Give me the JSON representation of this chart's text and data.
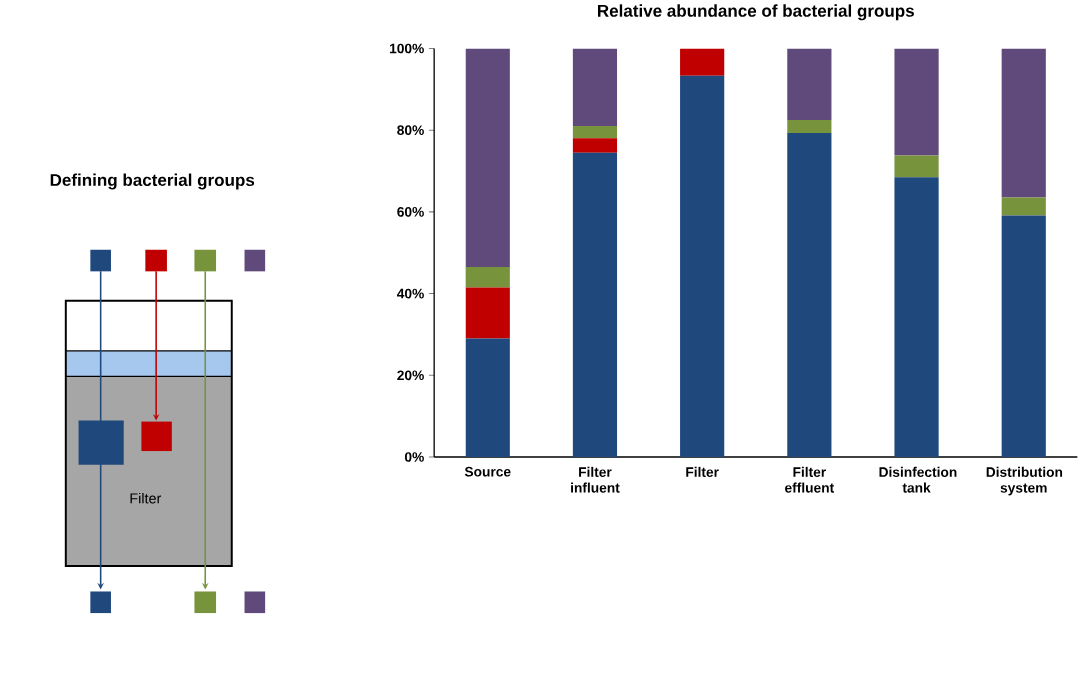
{
  "chart_data": [
    {
      "type": "other",
      "title": "Defining bacterial groups",
      "annotations": [
        "Filter"
      ]
    },
    {
      "type": "bar",
      "stacked": true,
      "title": "Relative abundance of bacterial groups",
      "categories": [
        "Source",
        "Filter influent",
        "Filter",
        "Filter effluent",
        "Disinfection tank",
        "Distribution system"
      ],
      "series": [
        {
          "color": "#1f497d",
          "values": [
            29,
            74.5,
            93.3,
            79.3,
            68.5,
            59.1
          ]
        },
        {
          "color": "#c00000",
          "values": [
            12.5,
            3.5,
            6.7,
            0,
            0,
            0
          ]
        },
        {
          "color": "#77933c",
          "values": [
            5,
            3,
            0,
            3.2,
            5.3,
            4.4
          ]
        },
        {
          "color": "#604a7b",
          "values": [
            53.5,
            19,
            0,
            17.5,
            26.2,
            36.5
          ]
        }
      ],
      "ylim": [
        0,
        100
      ],
      "yticks": [
        {
          "value": 0,
          "label": "0%"
        },
        {
          "value": 20,
          "label": "20%"
        },
        {
          "value": 40,
          "label": "40%"
        },
        {
          "value": 60,
          "label": "60%"
        },
        {
          "value": 80,
          "label": "80%"
        },
        {
          "value": 100,
          "label": "100%"
        }
      ],
      "grid": false
    }
  ]
}
